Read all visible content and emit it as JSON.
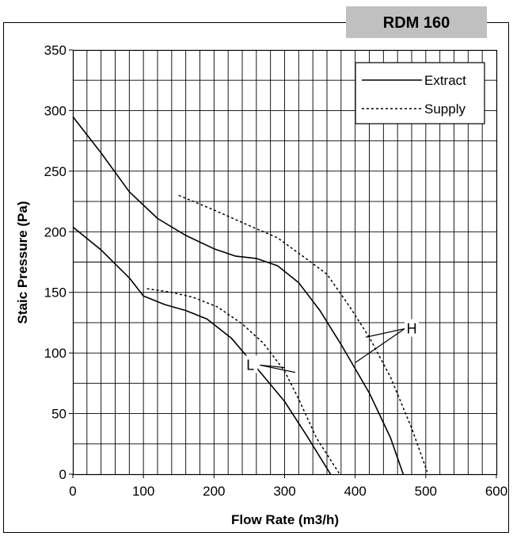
{
  "chart_data": {
    "type": "line",
    "title": "RDM 160",
    "xlabel": "Flow Rate (m3/h)",
    "ylabel": "Staic Pressure (Pa)",
    "xlim": [
      0,
      600
    ],
    "ylim": [
      0,
      350
    ],
    "x_ticks": [
      0,
      100,
      200,
      300,
      400,
      500,
      600
    ],
    "y_ticks": [
      0,
      50,
      100,
      150,
      200,
      250,
      300,
      350
    ],
    "grid": true,
    "legend_position": "top-right",
    "legend": [
      {
        "label": "Extract",
        "style": "solid"
      },
      {
        "label": "Supply",
        "style": "dotted"
      }
    ],
    "series": [
      {
        "name": "Extract",
        "speed": "H",
        "style": "solid",
        "points": [
          [
            0,
            295
          ],
          [
            40,
            265
          ],
          [
            80,
            233
          ],
          [
            120,
            211
          ],
          [
            160,
            197
          ],
          [
            200,
            186
          ],
          [
            230,
            180
          ],
          [
            260,
            178
          ],
          [
            290,
            172
          ],
          [
            320,
            158
          ],
          [
            350,
            135
          ],
          [
            380,
            107
          ],
          [
            420,
            67
          ],
          [
            450,
            30
          ],
          [
            468,
            0
          ]
        ]
      },
      {
        "name": "Supply",
        "speed": "H",
        "style": "dotted",
        "points": [
          [
            150,
            230
          ],
          [
            200,
            218
          ],
          [
            250,
            205
          ],
          [
            290,
            195
          ],
          [
            330,
            178
          ],
          [
            360,
            165
          ],
          [
            390,
            140
          ],
          [
            420,
            113
          ],
          [
            450,
            80
          ],
          [
            480,
            38
          ],
          [
            502,
            2
          ]
        ]
      },
      {
        "name": "Extract",
        "speed": "L",
        "style": "solid",
        "points": [
          [
            0,
            204
          ],
          [
            40,
            185
          ],
          [
            80,
            162
          ],
          [
            100,
            147
          ],
          [
            130,
            140
          ],
          [
            160,
            135
          ],
          [
            190,
            128
          ],
          [
            225,
            112
          ],
          [
            260,
            88
          ],
          [
            300,
            60
          ],
          [
            330,
            33
          ],
          [
            365,
            0
          ]
        ]
      },
      {
        "name": "Supply",
        "speed": "L",
        "style": "dotted",
        "points": [
          [
            105,
            153
          ],
          [
            140,
            150
          ],
          [
            170,
            146
          ],
          [
            205,
            138
          ],
          [
            240,
            124
          ],
          [
            270,
            108
          ],
          [
            300,
            85
          ],
          [
            320,
            62
          ],
          [
            345,
            30
          ],
          [
            378,
            0
          ]
        ]
      }
    ],
    "annotations": [
      {
        "text": "H",
        "anchor": [
          470,
          120
        ],
        "targets": [
          [
            415,
            113
          ],
          [
            400,
            92
          ]
        ]
      },
      {
        "text": "L",
        "anchor": [
          265,
          90
        ],
        "targets": [
          [
            315,
            84
          ],
          [
            300,
            88
          ]
        ]
      }
    ],
    "colors": {
      "lines": "#000000",
      "grid": "#000000",
      "background": "#ffffff",
      "title_box": "#c0c0c0"
    }
  }
}
